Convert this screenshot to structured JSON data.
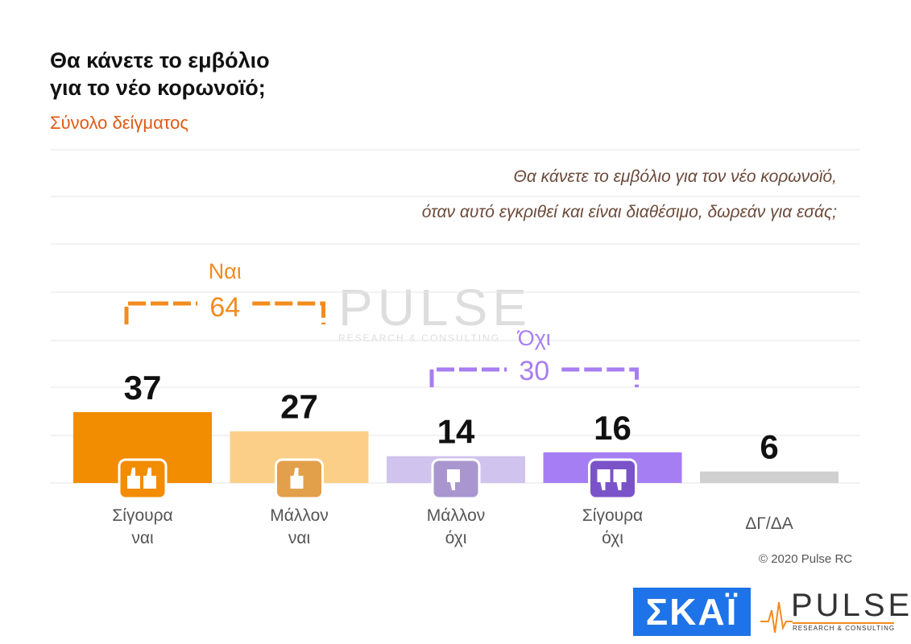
{
  "title_line1": "Θα κάνετε το εμβόλιο",
  "title_line2": "για το νέο κορωνοϊό;",
  "subtitle": "Σύνολο δείγματος",
  "question_line1": "Θα κάνετε το εμβόλιο για τον νέο κορωνοϊό,",
  "question_line2": "όταν αυτό εγκριθεί και είναι διαθέσιμο, δωρεάν για εσάς;",
  "copyright": "© 2020 Pulse RC",
  "logos": {
    "skai": "ΣΚΑΪ",
    "pulse": "PULSE",
    "pulse_sub": "RESEARCH & CONSULTING",
    "watermark": "PULSE",
    "watermark_sub": "RESEARCH & CONSULTING"
  },
  "groups": [
    {
      "label": "Ναι",
      "value": "64",
      "color": "#f28c1e"
    },
    {
      "label": "Όχι",
      "value": "30",
      "color": "#a77ef0"
    }
  ],
  "chart_data": {
    "type": "bar",
    "categories": [
      [
        "Σίγουρα",
        "ναι"
      ],
      [
        "Μάλλον",
        "ναι"
      ],
      [
        "Μάλλον",
        "όχι"
      ],
      [
        "Σίγουρα",
        "όχι"
      ],
      [
        "ΔΓ/ΔΑ"
      ]
    ],
    "values": [
      37,
      27,
      14,
      16,
      6
    ],
    "colors": [
      "#f28c00",
      "#fccf88",
      "#d0c4ee",
      "#a67ef3",
      "#d0d0d0"
    ],
    "icons": [
      "double-thumbs-up-icon",
      "thumbs-up-icon",
      "thumbs-down-icon",
      "double-thumbs-down-icon",
      null
    ],
    "grid": true
  }
}
